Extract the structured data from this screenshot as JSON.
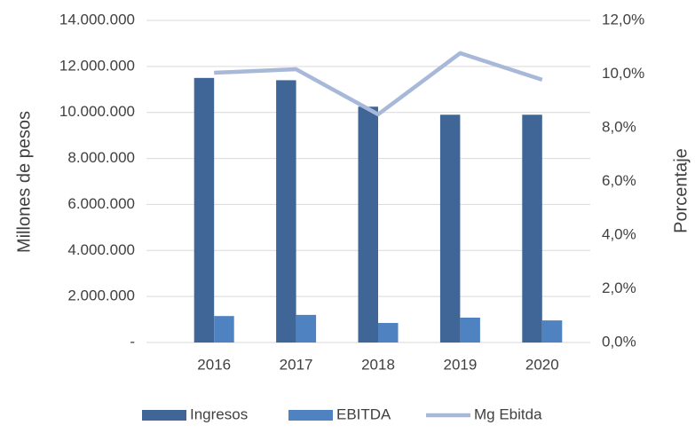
{
  "chart_data": {
    "type": "bar",
    "categories": [
      "2016",
      "2017",
      "2018",
      "2019",
      "2020"
    ],
    "series": [
      {
        "name": "Ingresos",
        "color": "#3f6697",
        "values": [
          11500000,
          11400000,
          10250000,
          9900000,
          9900000
        ]
      },
      {
        "name": "EBITDA",
        "color": "#4f82c0",
        "values": [
          1150000,
          1200000,
          850000,
          1080000,
          960000
        ]
      },
      {
        "name": "Mg Ebitda",
        "type": "line",
        "axis": "y2",
        "color": "#a7b8d8",
        "values": [
          10.05,
          10.18,
          8.5,
          10.78,
          9.79
        ]
      }
    ],
    "ylabel": "Millones de pesos",
    "y2label": "Porcentaje",
    "ylim": [
      0,
      14000000
    ],
    "yticks": [
      {
        "value": 0,
        "label": "-"
      },
      {
        "value": 2000000,
        "label": "2.000.000"
      },
      {
        "value": 4000000,
        "label": "4.000.000"
      },
      {
        "value": 6000000,
        "label": "6.000.000"
      },
      {
        "value": 8000000,
        "label": "8.000.000"
      },
      {
        "value": 10000000,
        "label": "10.000.000"
      },
      {
        "value": 12000000,
        "label": "12.000.000"
      },
      {
        "value": 14000000,
        "label": "14.000.000"
      }
    ],
    "y2lim": [
      0,
      12
    ],
    "y2ticks": [
      {
        "value": 0,
        "label": "0,0%"
      },
      {
        "value": 2,
        "label": "2,0%"
      },
      {
        "value": 4,
        "label": "4,0%"
      },
      {
        "value": 6,
        "label": "6,0%"
      },
      {
        "value": 8,
        "label": "8,0%"
      },
      {
        "value": 10,
        "label": "10,0%"
      },
      {
        "value": 12,
        "label": "12,0%"
      }
    ],
    "grid": true,
    "legend": "bottom"
  }
}
